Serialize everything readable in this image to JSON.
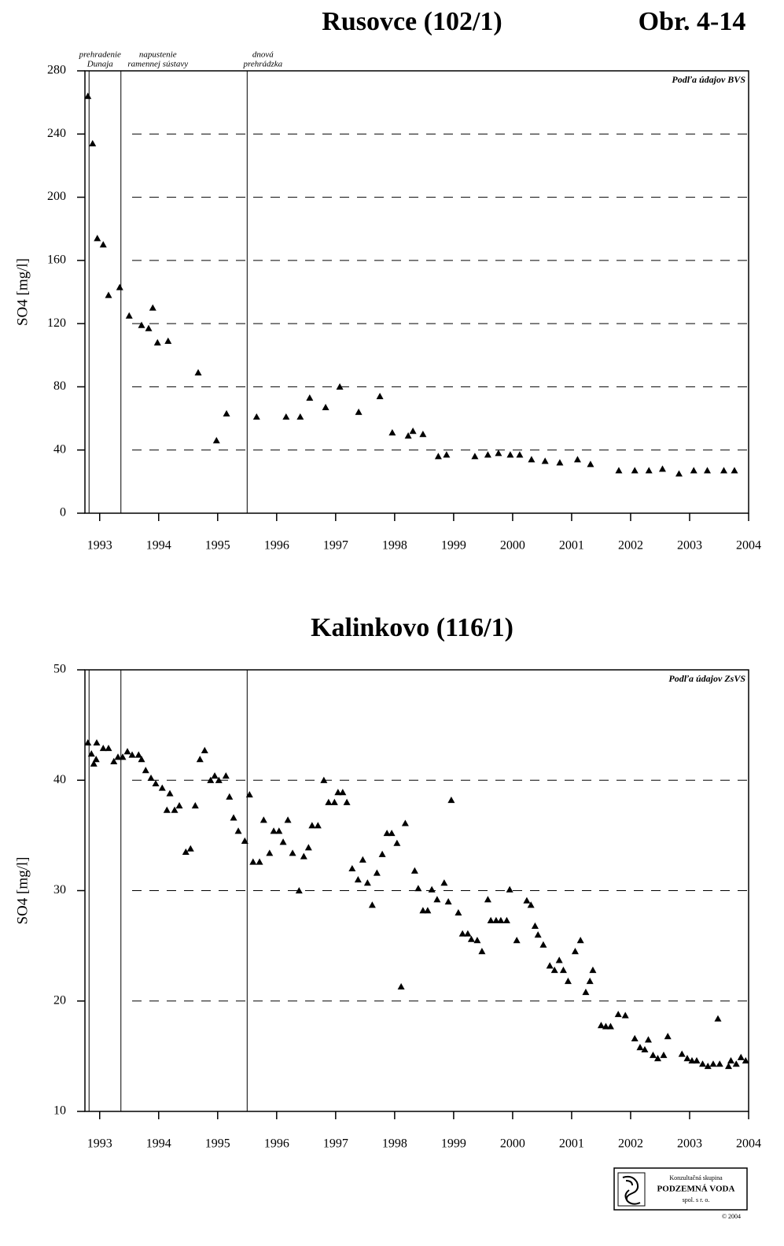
{
  "figure_label": "Obr. 4-14",
  "chart_data": [
    {
      "type": "scatter",
      "title": "Rusovce (102/1)",
      "ylabel": "SO4 [mg/l]",
      "source": "Podľa údajov BVS",
      "color": "#000000",
      "grid": true,
      "xlim": [
        1992.75,
        2004
      ],
      "xticks": [
        1993,
        1994,
        1995,
        1996,
        1997,
        1998,
        1999,
        2000,
        2001,
        2002,
        2003,
        2004
      ],
      "ylim": [
        0,
        280
      ],
      "yticks": [
        0,
        40,
        80,
        120,
        160,
        200,
        240,
        280
      ],
      "events": [
        {
          "x": 1992.82,
          "label": [
            "prehradenie",
            "Dunaja"
          ]
        },
        {
          "x": 1993.36,
          "label": [
            "napustenie",
            "ramennej sústavy"
          ]
        },
        {
          "x": 1995.5,
          "label": [
            "dnová",
            "prehrádzka"
          ]
        }
      ],
      "x": [
        1992.8,
        1992.88,
        1992.96,
        1993.06,
        1993.15,
        1993.34,
        1993.5,
        1993.71,
        1993.83,
        1993.9,
        1993.98,
        1994.16,
        1994.67,
        1994.98,
        1995.15,
        1995.66,
        1996.16,
        1996.4,
        1996.56,
        1996.83,
        1997.07,
        1997.39,
        1997.75,
        1997.96,
        1998.23,
        1998.31,
        1998.48,
        1998.74,
        1998.88,
        1999.36,
        1999.58,
        1999.76,
        1999.96,
        2000.12,
        2000.32,
        2000.55,
        2000.8,
        2001.1,
        2001.32,
        2001.8,
        2002.07,
        2002.31,
        2002.54,
        2002.82,
        2003.07,
        2003.3,
        2003.58,
        2003.76
      ],
      "values": [
        264,
        234,
        174,
        170,
        138,
        143,
        125,
        119,
        117,
        130,
        108,
        109,
        89,
        46,
        63,
        61,
        61,
        61,
        73,
        67,
        80,
        64,
        74,
        51,
        49,
        52,
        50,
        36,
        37,
        36,
        37,
        38,
        37,
        37,
        34,
        33,
        32,
        34,
        31,
        27,
        27,
        27,
        28,
        25,
        27,
        27,
        27,
        27
      ]
    },
    {
      "type": "scatter",
      "title": "Kalinkovo (116/1)",
      "ylabel": "SO4 [mg/l]",
      "source": "Podľa údajov ZsVS",
      "color": "#000000",
      "grid": true,
      "xlim": [
        1992.75,
        2004
      ],
      "xticks": [
        1993,
        1994,
        1995,
        1996,
        1997,
        1998,
        1999,
        2000,
        2001,
        2002,
        2003,
        2004
      ],
      "ylim": [
        10,
        50
      ],
      "yticks": [
        10,
        20,
        30,
        40,
        50
      ],
      "events": [
        {
          "x": 1992.82
        },
        {
          "x": 1993.36
        },
        {
          "x": 1995.5
        }
      ],
      "x": [
        1992.8,
        1992.86,
        1992.9,
        1992.94,
        1992.95,
        1993.06,
        1993.15,
        1993.24,
        1993.31,
        1993.39,
        1993.47,
        1993.55,
        1993.66,
        1993.71,
        1993.78,
        1993.87,
        1993.95,
        1994.06,
        1994.14,
        1994.19,
        1994.27,
        1994.35,
        1994.46,
        1994.54,
        1994.62,
        1994.7,
        1994.78,
        1994.88,
        1994.95,
        1995.02,
        1995.14,
        1995.2,
        1995.27,
        1995.35,
        1995.46,
        1995.54,
        1995.6,
        1995.71,
        1995.78,
        1995.88,
        1995.95,
        1996.04,
        1996.11,
        1996.19,
        1996.27,
        1996.38,
        1996.46,
        1996.54,
        1996.6,
        1996.7,
        1996.8,
        1996.88,
        1996.98,
        1997.04,
        1997.12,
        1997.19,
        1997.28,
        1997.38,
        1997.46,
        1997.54,
        1997.62,
        1997.7,
        1997.79,
        1997.87,
        1997.95,
        1998.04,
        1998.11,
        1998.18,
        1998.34,
        1998.4,
        1998.48,
        1998.56,
        1998.63,
        1998.72,
        1998.84,
        1998.91,
        1998.96,
        1999.08,
        1999.15,
        1999.24,
        1999.3,
        1999.4,
        1999.48,
        1999.58,
        1999.63,
        1999.72,
        1999.8,
        1999.9,
        1999.95,
        2000.07,
        2000.24,
        2000.31,
        2000.38,
        2000.43,
        2000.52,
        2000.63,
        2000.71,
        2000.79,
        2000.86,
        2000.94,
        2001.06,
        2001.15,
        2001.24,
        2001.31,
        2001.36,
        2001.5,
        2001.58,
        2001.66,
        2001.79,
        2001.91,
        2002.07,
        2002.16,
        2002.24,
        2002.3,
        2002.38,
        2002.46,
        2002.56,
        2002.63,
        2002.87,
        2002.96,
        2003.04,
        2003.12,
        2003.22,
        2003.31,
        2003.4,
        2003.48,
        2003.51,
        2003.66,
        2003.7,
        2003.79,
        2003.87,
        2003.95
      ],
      "values": [
        43.4,
        42.4,
        41.5,
        41.9,
        43.4,
        42.9,
        42.9,
        41.7,
        42.1,
        42.1,
        42.6,
        42.3,
        42.3,
        41.9,
        40.9,
        40.2,
        39.7,
        39.3,
        37.3,
        38.8,
        37.3,
        37.7,
        33.5,
        33.8,
        37.7,
        41.9,
        42.7,
        40.0,
        40.4,
        40.0,
        40.4,
        38.5,
        36.6,
        35.4,
        34.5,
        38.7,
        32.6,
        32.6,
        36.4,
        33.4,
        35.4,
        35.4,
        34.4,
        36.4,
        33.4,
        30.0,
        33.1,
        33.9,
        35.9,
        35.9,
        40.0,
        38.0,
        38.0,
        38.9,
        38.9,
        38.0,
        32.0,
        31.0,
        32.8,
        30.7,
        28.7,
        31.6,
        33.3,
        35.2,
        35.2,
        34.3,
        21.3,
        36.1,
        31.8,
        30.2,
        28.2,
        28.2,
        30.1,
        29.2,
        30.7,
        29.0,
        38.2,
        28.0,
        26.1,
        26.1,
        25.6,
        25.5,
        24.5,
        29.2,
        27.3,
        27.3,
        27.3,
        27.3,
        30.1,
        25.5,
        29.1,
        28.7,
        26.8,
        26.0,
        25.1,
        23.2,
        22.8,
        23.7,
        22.8,
        21.8,
        24.5,
        25.5,
        20.8,
        21.8,
        22.8,
        17.8,
        17.7,
        17.7,
        18.8,
        18.7,
        16.6,
        15.8,
        15.6,
        16.5,
        15.1,
        14.8,
        15.1,
        16.8,
        15.2,
        14.8,
        14.6,
        14.6,
        14.3,
        14.1,
        14.3,
        18.4,
        14.3,
        14.1,
        14.6,
        14.3,
        14.9,
        14.6
      ]
    }
  ],
  "logo": {
    "caption": "Konzultačná skupina",
    "name": "PODZEMNÁ VODA",
    "suffix": "spol. s r. o.",
    "copyright": "© 2004"
  }
}
